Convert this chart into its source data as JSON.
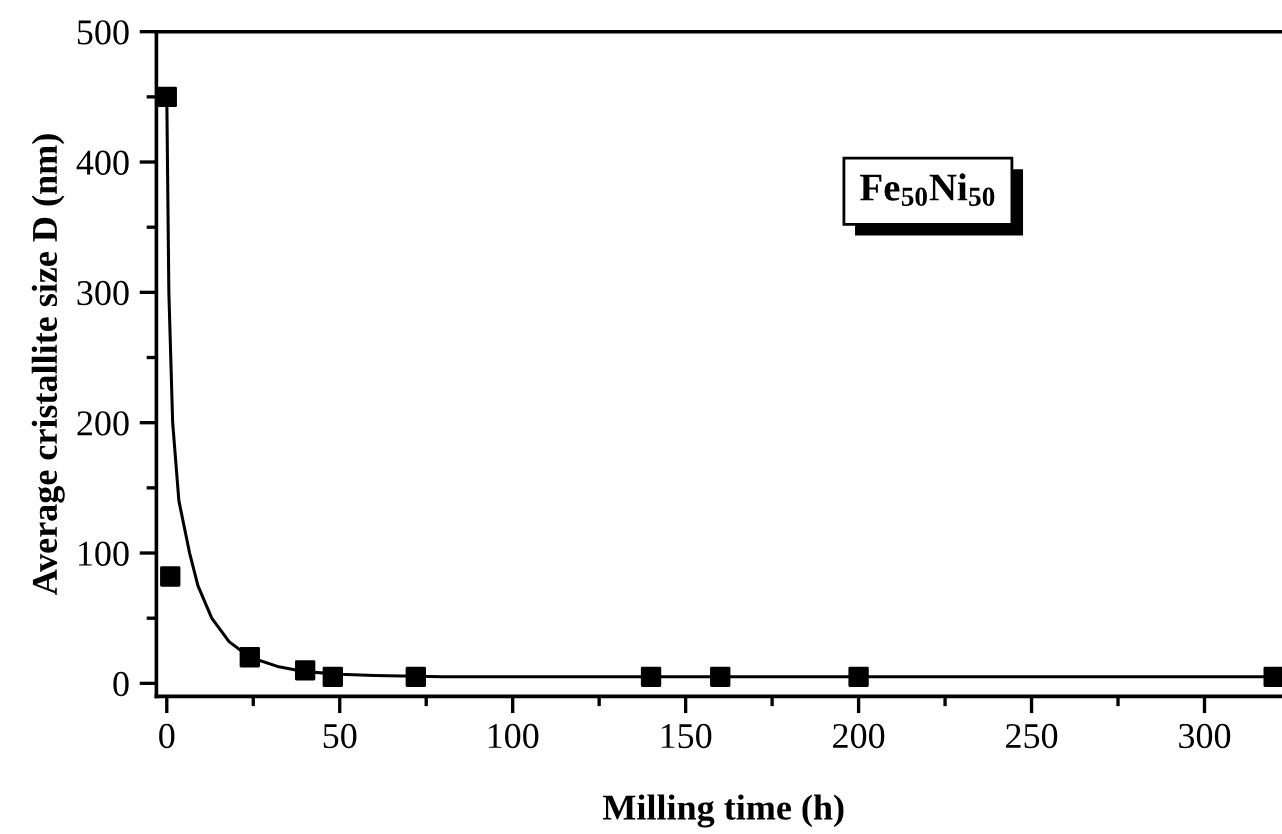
{
  "chart_data": {
    "type": "scatter",
    "xlabel": "Milling time (h)",
    "ylabel": "Average cristallite size D (nm)",
    "annotations": [
      "Fe$_{50}$Ni$_{50}$"
    ],
    "series": [
      {
        "color": "#000000",
        "marker": "square",
        "x": [
          0,
          1,
          24,
          40,
          48,
          72,
          140,
          160,
          200,
          320
        ],
        "values": [
          450,
          82,
          20,
          10,
          5,
          5,
          5,
          5,
          5,
          5
        ]
      },
      {
        "type": "line",
        "color": "#000000",
        "marker": "none",
        "line_style": "solid",
        "x": [
          0,
          0.6,
          1.7,
          3.5,
          6.6,
          9,
          13,
          18,
          24,
          32,
          40,
          50,
          60,
          80,
          320
        ],
        "values": [
          450,
          300,
          200,
          140,
          100,
          75,
          50,
          32,
          20,
          13,
          9,
          7,
          6,
          5,
          5
        ]
      }
    ],
    "xlim": [
      -3,
      325
    ],
    "xticks": [
      0,
      50,
      100,
      150,
      200,
      250,
      300
    ],
    "ylim": [
      -10,
      500
    ],
    "yticks": [
      0,
      100,
      200,
      300,
      400,
      500
    ],
    "grid": false,
    "legend": false
  }
}
